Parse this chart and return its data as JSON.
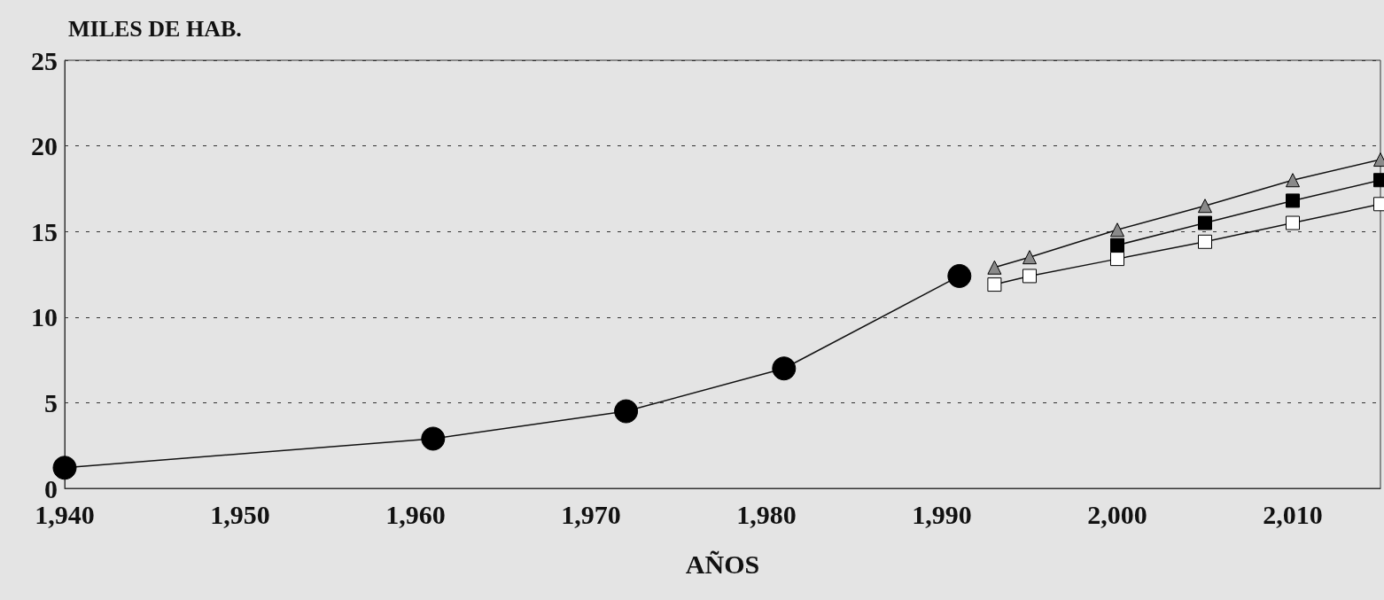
{
  "chart_data": {
    "type": "line",
    "ylabel": "MILES DE HAB.",
    "xlabel": "AÑOS",
    "xlim": [
      1940,
      2015
    ],
    "xticks": [
      {
        "value": 1940,
        "label": "1,940"
      },
      {
        "value": 1950,
        "label": "1,950"
      },
      {
        "value": 1960,
        "label": "1,960"
      },
      {
        "value": 1970,
        "label": "1,970"
      },
      {
        "value": 1980,
        "label": "1,980"
      },
      {
        "value": 1990,
        "label": "1,990"
      },
      {
        "value": 2000,
        "label": "2,000"
      },
      {
        "value": 2010,
        "label": "2,010"
      }
    ],
    "ylim": [
      0,
      25
    ],
    "yticks": [
      0,
      5,
      10,
      15,
      20,
      25
    ],
    "grid": "y",
    "series": [
      {
        "color": "#000000",
        "marker": "circle",
        "x": [
          1940,
          1961,
          1972,
          1981,
          1991
        ],
        "values": [
          1.2,
          2.9,
          4.5,
          7.0,
          12.4
        ]
      },
      {
        "color": "#ffffff",
        "marker": "square",
        "x": [
          1993,
          1995,
          2000,
          2005,
          2010,
          2015
        ],
        "values": [
          11.9,
          12.4,
          13.4,
          14.4,
          15.5,
          16.6
        ]
      },
      {
        "color": "#000000",
        "marker": "square",
        "x": [
          2000,
          2005,
          2010,
          2015
        ],
        "values": [
          14.2,
          15.5,
          16.8,
          18.0
        ]
      },
      {
        "color": "#8a8a8a",
        "marker": "triangle",
        "x": [
          1993,
          1995,
          2000,
          2005,
          2010,
          2015
        ],
        "values": [
          12.9,
          13.5,
          15.1,
          16.5,
          18.0,
          19.2
        ]
      }
    ]
  }
}
